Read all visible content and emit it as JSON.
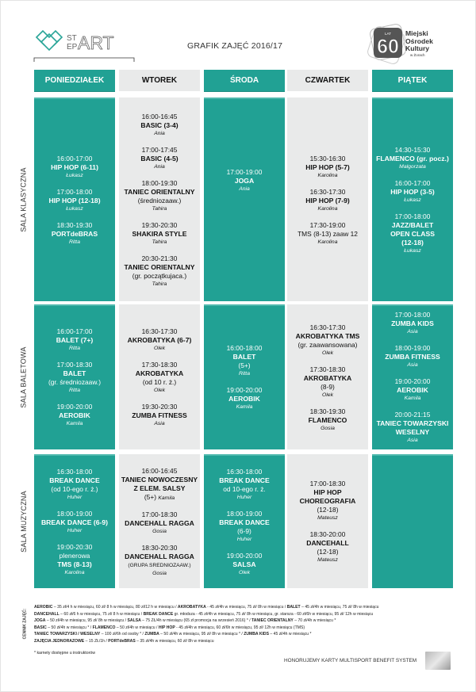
{
  "header": {
    "logo_text": "STEPART",
    "title": "GRAFIK ZAJĘĆ 2016/17",
    "mok_badge": "60",
    "mok_badge_small": "LAT",
    "mok_name": [
      "Miejski",
      "Ośrodek",
      "Kultury"
    ],
    "mok_city": "w Żorach"
  },
  "colors": {
    "teal": "#21a194",
    "gray": "#e9eaea"
  },
  "days": [
    "PONIEDZIAŁEK",
    "WTOREK",
    "ŚRODA",
    "CZWARTEK",
    "PIĄTEK"
  ],
  "rooms": [
    {
      "label": "SALA KLASYCZNA",
      "cells": [
        [
          {
            "time": "16:00-17:00",
            "name": [
              "HIP HOP (6-11)"
            ],
            "who": "Łukasz"
          },
          {
            "time": "17:00-18:00",
            "name": [
              "HIP HOP (12-18)"
            ],
            "who": "Łukasz"
          },
          {
            "time": "18:30-19:30",
            "name": [
              "PORTdeBRAS"
            ],
            "who": "Ritta"
          }
        ],
        [
          {
            "time": "16:00-16:45",
            "name": [
              "BASIC (3-4)"
            ],
            "who": "Ania"
          },
          {
            "time": "17:00-17:45",
            "name": [
              "BASIC (4-5)"
            ],
            "who": "Ania"
          },
          {
            "time": "18:00-19:30",
            "name": [
              "TANIEC ORIENTALNY"
            ],
            "sub": [
              "(średniozaaw.)"
            ],
            "who": "Tahira"
          },
          {
            "time": "19:30-20:30",
            "name": [
              "SHAKIRA STYLE"
            ],
            "who": "Tahira"
          },
          {
            "time": "20:30-21:30",
            "name": [
              "TANIEC ORIENTALNY"
            ],
            "sub": [
              "(gr. początkujaca.)"
            ],
            "who": "Tahira"
          }
        ],
        [
          {
            "time": "17:00-19:00",
            "name": [
              "JOGA"
            ],
            "who": "Ania"
          }
        ],
        [
          {
            "time": "15:30-16:30",
            "name": [
              "HIP HOP (5-7)"
            ],
            "who": "Karolina"
          },
          {
            "time": "16:30-17:30",
            "name": [
              "HIP HOP (7-9)"
            ],
            "who": "Karolina"
          },
          {
            "time": "17:30-19:00",
            "name": [],
            "sub": [
              "TMS (8-13) zaaw 12"
            ],
            "who": "Karolina"
          }
        ],
        [
          {
            "time": "14:30-15:30",
            "name": [
              "FLAMENCO (gr. pocz.)"
            ],
            "who": "Malgorzata"
          },
          {
            "time": "16:00-17:00",
            "name": [
              "HIP HOP (3-5)"
            ],
            "who": "Łukasz"
          },
          {
            "time": "17:00-18:00",
            "name": [
              "JAZZ/BALET",
              "OPEN CLASS",
              "(12-18)"
            ],
            "who": "Łukasz"
          }
        ]
      ]
    },
    {
      "label": "SALA BALETOWA",
      "cells": [
        [
          {
            "time": "16:00-17:00",
            "name": [
              "BALET (7+)"
            ],
            "who": "Ritta"
          },
          {
            "time": "17:00-18:30",
            "name": [
              "BALET"
            ],
            "sub": [
              "(gr. średniozaaw.)"
            ],
            "who": "Ritta"
          },
          {
            "time": "19:00-20:00",
            "name": [
              "AEROBIK"
            ],
            "who": "Kamila"
          }
        ],
        [
          {
            "time": "16:30-17:30",
            "name": [
              "AKROBATYKA (6-7)"
            ],
            "who": "Olek"
          },
          {
            "time": "17:30-18:30",
            "name": [
              "AKROBATYKA"
            ],
            "sub": [
              "(od 10 r. ż.)"
            ],
            "who": "Olek"
          },
          {
            "time": "19:30-20:30",
            "name": [
              "ZUMBA FITNESS"
            ],
            "who": "Asia"
          }
        ],
        [
          {
            "time": "16:00-18:00",
            "name": [
              "BALET"
            ],
            "sub": [
              "(5+)"
            ],
            "who": "Ritta"
          },
          {
            "time": "19:00-20:00",
            "name": [
              "AEROBIK"
            ],
            "who": "Kamila"
          }
        ],
        [
          {
            "time": "16:30-17:30",
            "name": [
              "AKROBATYKA  TMS"
            ],
            "sub": [
              "(gr. zaawansowana)"
            ],
            "who": "Olek"
          },
          {
            "time": "17:30-18:30",
            "name": [
              "AKROBATYKA"
            ],
            "sub": [
              "(8-9)"
            ],
            "who": "Olek"
          },
          {
            "time": "18:30-19:30",
            "name": [
              "FLAMENCO"
            ],
            "who": "Gosia"
          }
        ],
        [
          {
            "time": "17:00-18:00",
            "name": [
              "ZUMBA KIDS"
            ],
            "who": "Asia"
          },
          {
            "time": "18:00-19:00",
            "name": [
              "ZUMBA FITNESS"
            ],
            "who": "Asia"
          },
          {
            "time": "19:00-20:00",
            "name": [
              "AEROBIK"
            ],
            "who": "Kamila"
          },
          {
            "time": "20:00-21:15",
            "name": [
              "TANIEC TOWARZYSKI",
              "WESELNY"
            ],
            "who": "Asia"
          }
        ]
      ]
    },
    {
      "label": "SALA MUZYCZNA",
      "cells": [
        [
          {
            "time": "16:30-18:00",
            "name": [
              "BREAK DANCE"
            ],
            "sub": [
              "(od 10-ego r. ż.)"
            ],
            "who": "Huher"
          },
          {
            "time": "18:00-19:00",
            "name": [
              "BREAK DANCE (6-9)"
            ],
            "who": "Huher"
          },
          {
            "time": "19:00-20:30",
            "name": [],
            "sub": [
              "plenerowa"
            ],
            "name2": [
              "TMS (8-13)"
            ],
            "who": "Karolina"
          }
        ],
        [
          {
            "time": "16:00-16:45",
            "name": [
              "TANIEC NOWOCZESNY",
              "Z ELEM. SALSY"
            ],
            "sub_inline": "(5+)",
            "who": "Kamila"
          },
          {
            "time": "17:00-18:30",
            "name": [
              "DANCEHALL RAGGA"
            ],
            "who": "Gosia"
          },
          {
            "time": "18:30-20:30",
            "name": [
              "DANCEHALL RAGGA"
            ],
            "sub_caps": "(GRUPA SREDNIOZAAW.)",
            "who": "Gosia"
          }
        ],
        [
          {
            "time": "16:30-18:00",
            "name": [
              "BREAK DANCE"
            ],
            "sub": [
              "od 10-ego r. ż."
            ],
            "who": "Huher"
          },
          {
            "time": "18:00-19:00",
            "name": [
              "BREAK DANCE"
            ],
            "sub": [
              "(6-9)"
            ],
            "who": "Huher"
          },
          {
            "time": "19:00-20:00",
            "name": [
              "SALSA"
            ],
            "who": "Olek"
          }
        ],
        [
          {
            "time": "17:00-18:30",
            "name": [
              "HIP HOP",
              "CHOREOGRAFIA"
            ],
            "sub": [
              "(12-18)"
            ],
            "who": "Mateusz"
          },
          {
            "time": "18:30-20:00",
            "name": [
              "DANCEHALL"
            ],
            "sub": [
              "(12-18)"
            ],
            "who": "Mateusz"
          }
        ],
        []
      ]
    }
  ],
  "pricing": {
    "label": "CENNIK ZAJĘĆ:",
    "lines": [
      [
        [
          "AEROBIC",
          " – 35 zł/4 h w miesiącu, 60 zł/ 8 h w miesiącu, 80 zł/12 h w miesiącu  /  "
        ],
        [
          "AKROBATYKA",
          " - 45 zł/4h w miesiącu, 75 zł/ 8h w miesiącu  /  "
        ],
        [
          "BALET",
          " – 45 zł/4h w miesiącu, 75 zł/ 8h w miesiącu"
        ]
      ],
      [
        [
          "DANCEHALL",
          " – 60 zł/6 h w miesiącu,  75 zł/ 8 h w miesiącu  /  "
        ],
        [
          "BREAK DANCE",
          " gr. młodsza - 45 zł/4h w miesiącu, 75 zł/ 8h w miesiącu,  gr. starsza  - 60 zł/6h w miesiącu,  95 zł/ 12h w miesiącu"
        ]
      ],
      [
        [
          "JOGA",
          " – 50 zł/4h w miesiącu, 95 zł/ 8h w miesiącu  /  "
        ],
        [
          "SALSA",
          " – 75 ZŁ/4h w miesiącu (65 zł promocja na wrzesień 2016) *  /  "
        ],
        [
          "TANIEC  ORIENTALNY",
          " – 70 zł/4h w miesiącu *"
        ]
      ],
      [
        [
          "BASIC",
          "  – 50 zł/4h w miesiącu *  /  "
        ],
        [
          "FLAMENCO",
          " – 50 zł/4h w miesiącu  /  "
        ],
        [
          "HIP HOP",
          " - 45 zł/4h w miesiącu, 60 zł/6h w miesiącu, 95 zł/ 12h w miesiącu (TMS)"
        ]
      ],
      [
        [
          " TANIEC  TOWARZYSKI / WESELNY",
          " – 100 zł/6h od osoby *  /  "
        ],
        [
          "ZUMBA",
          " – 50 zł/4h w miesiącu, 95 zł/ 8h w miesiącu *  /  "
        ],
        [
          "ZUMBA KIDS",
          " – 45 zł/4h w miesiącu *"
        ]
      ],
      [
        [
          "ZAJĘCIA JEDNORAZOWE",
          " – 15 ZŁ/1h  /  "
        ],
        [
          "PORTdeBRAS",
          " – 35 zł/4h w miesiącu, 60 zł/ 8h w miesiącu"
        ]
      ]
    ],
    "note": "* karnety dostępne u instruktorów",
    "multisport": "HONORUJEMY KARTY MULTISPORT BENEFIT SYSTEM"
  }
}
